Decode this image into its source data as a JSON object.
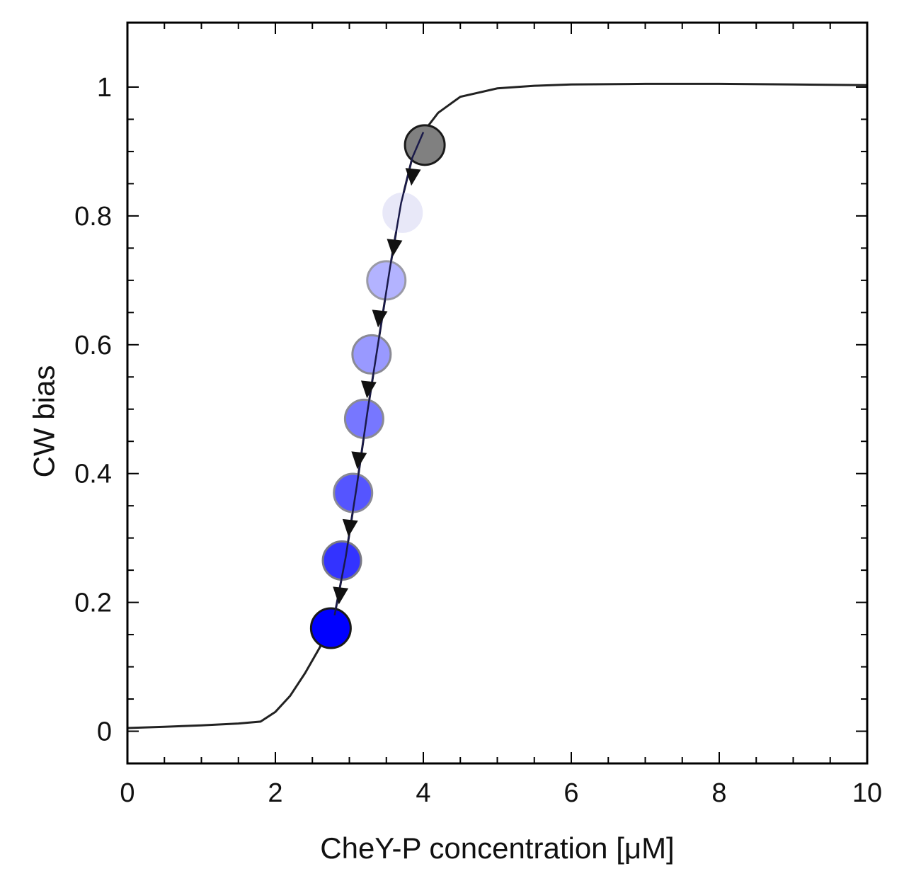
{
  "chart_data": {
    "type": "line",
    "title": "",
    "xlabel": "CheY-P  concentration  [μM]",
    "ylabel": "CW bias",
    "xlim": [
      0,
      10
    ],
    "ylim": [
      -0.05,
      1.1
    ],
    "x_ticks": [
      0,
      2,
      4,
      6,
      8,
      10
    ],
    "x_tick_labels": [
      "0",
      "2",
      "4",
      "6",
      "8",
      "10"
    ],
    "y_ticks": [
      0,
      0.2,
      0.4,
      0.6,
      0.8,
      1
    ],
    "y_tick_labels": [
      "0",
      "0.2",
      "0.4",
      "0.6",
      "0.8",
      "1"
    ],
    "grid": false,
    "curve": {
      "x": [
        0,
        0.5,
        1.0,
        1.5,
        1.8,
        2.0,
        2.2,
        2.4,
        2.6,
        2.8,
        2.95,
        3.1,
        3.25,
        3.4,
        3.55,
        3.7,
        3.85,
        4.0,
        4.2,
        4.5,
        5.0,
        5.5,
        6.0,
        7.0,
        8.0,
        9.0,
        10.0
      ],
      "y": [
        0.005,
        0.007,
        0.009,
        0.012,
        0.015,
        0.03,
        0.055,
        0.09,
        0.13,
        0.18,
        0.27,
        0.38,
        0.5,
        0.61,
        0.72,
        0.82,
        0.89,
        0.93,
        0.96,
        0.985,
        0.998,
        1.002,
        1.004,
        1.005,
        1.005,
        1.004,
        1.003
      ],
      "color": "#222222"
    },
    "points": [
      {
        "x": 4.02,
        "y": 0.91,
        "color": "#808080",
        "edge": "#1a1a1a"
      },
      {
        "x": 3.72,
        "y": 0.805,
        "color": "#e8e8f8",
        "edge": "#e8e8f8"
      },
      {
        "x": 3.5,
        "y": 0.7,
        "color": "#b3b3ff",
        "edge": "#9a9aa6"
      },
      {
        "x": 3.3,
        "y": 0.585,
        "color": "#9999ff",
        "edge": "#8a8a94"
      },
      {
        "x": 3.2,
        "y": 0.485,
        "color": "#7777ff",
        "edge": "#8a8a94"
      },
      {
        "x": 3.05,
        "y": 0.37,
        "color": "#5555ff",
        "edge": "#8a8a94"
      },
      {
        "x": 2.9,
        "y": 0.265,
        "color": "#3333ff",
        "edge": "#7a7a84"
      },
      {
        "x": 2.75,
        "y": 0.16,
        "color": "#0000ff",
        "edge": "#1a1a1a"
      }
    ],
    "arrows": [
      {
        "x": 3.85,
        "y": 0.86
      },
      {
        "x": 3.6,
        "y": 0.75
      },
      {
        "x": 3.4,
        "y": 0.64
      },
      {
        "x": 3.25,
        "y": 0.53
      },
      {
        "x": 3.12,
        "y": 0.42
      },
      {
        "x": 3.0,
        "y": 0.315
      },
      {
        "x": 2.87,
        "y": 0.21
      }
    ],
    "arrow_color": "#111111"
  }
}
